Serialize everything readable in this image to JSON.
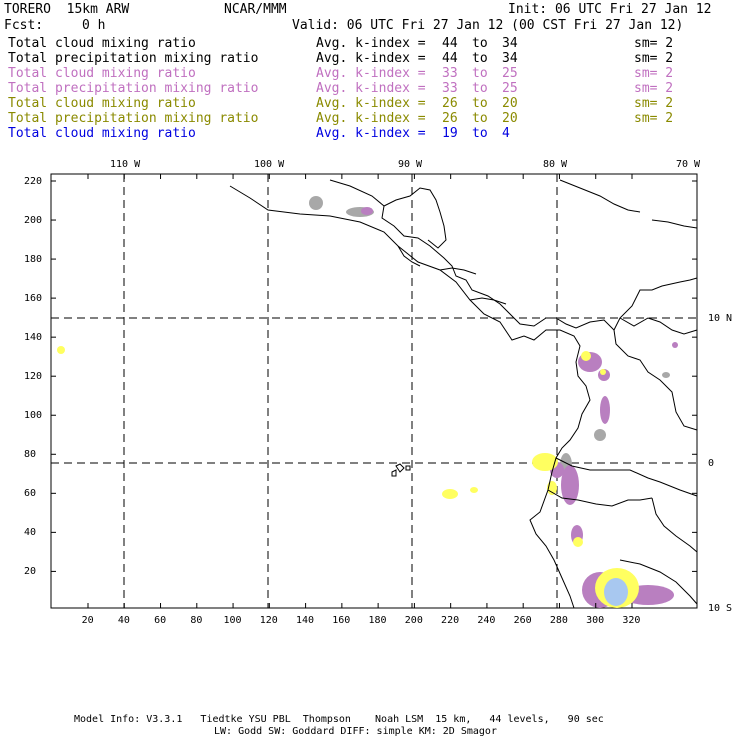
{
  "header": {
    "model": "TORERO  15km ARW",
    "org": "NCAR/MMM",
    "init": "Init: 06 UTC Fri 27 Jan 12",
    "fcst_label": "Fcst:",
    "fcst_value": "0 h",
    "valid": "Valid: 06 UTC Fri 27 Jan 12 (00 CST Fri 27 Jan 12)"
  },
  "legend": [
    {
      "field": "Total cloud mixing ratio",
      "kindex": "Avg. k-index =",
      "from": "44",
      "to_word": "to",
      "to": "34",
      "sm": "sm= 2",
      "color": "#000000"
    },
    {
      "field": "Total precipitation mixing ratio",
      "kindex": "Avg. k-index =",
      "from": "44",
      "to_word": "to",
      "to": "34",
      "sm": "sm= 2",
      "color": "#000000"
    },
    {
      "field": "Total cloud mixing ratio",
      "kindex": "Avg. k-index =",
      "from": "33",
      "to_word": "to",
      "to": "25",
      "sm": "sm= 2",
      "color": "#c070c0"
    },
    {
      "field": "Total precipitation mixing ratio",
      "kindex": "Avg. k-index =",
      "from": "33",
      "to_word": "to",
      "to": "25",
      "sm": "sm= 2",
      "color": "#c070c0"
    },
    {
      "field": "Total cloud mixing ratio",
      "kindex": "Avg. k-index =",
      "from": "26",
      "to_word": "to",
      "to": "20",
      "sm": "sm= 2",
      "color": "#8a8a00"
    },
    {
      "field": "Total precipitation mixing ratio",
      "kindex": "Avg. k-index =",
      "from": "26",
      "to_word": "to",
      "to": "20",
      "sm": "sm= 2",
      "color": "#8a8a00"
    },
    {
      "field": "Total cloud mixing ratio",
      "kindex": "Avg. k-index =",
      "from": "19",
      "to_word": "to",
      "to": "4",
      "sm": "",
      "color": "#0000e0"
    }
  ],
  "axes": {
    "top_lon": [
      "110 W",
      "100 W",
      "90 W",
      "80 W",
      "70 W"
    ],
    "right_lat": [
      "10 N",
      "0",
      "10 S"
    ],
    "left_y": [
      "220",
      "200",
      "180",
      "160",
      "140",
      "120",
      "100",
      "80",
      "60",
      "40",
      "20"
    ],
    "bottom_x": [
      "20",
      "40",
      "60",
      "80",
      "100",
      "120",
      "140",
      "160",
      "180",
      "200",
      "220",
      "240",
      "260",
      "280",
      "300",
      "320"
    ]
  },
  "footer": {
    "line1": "Model Info: V3.3.1   Tiedtke YSU PBL  Thompson    Noah LSM  15 km,   44 levels,   90 sec",
    "line2": "LW: Godd SW: Goddard DIFF: simple KM: 2D Smagor"
  },
  "colors": {
    "gray": "#a8a8a8",
    "purple": "#b97fc0",
    "yellow": "#ffff60",
    "blue": "#a8c8f0"
  }
}
